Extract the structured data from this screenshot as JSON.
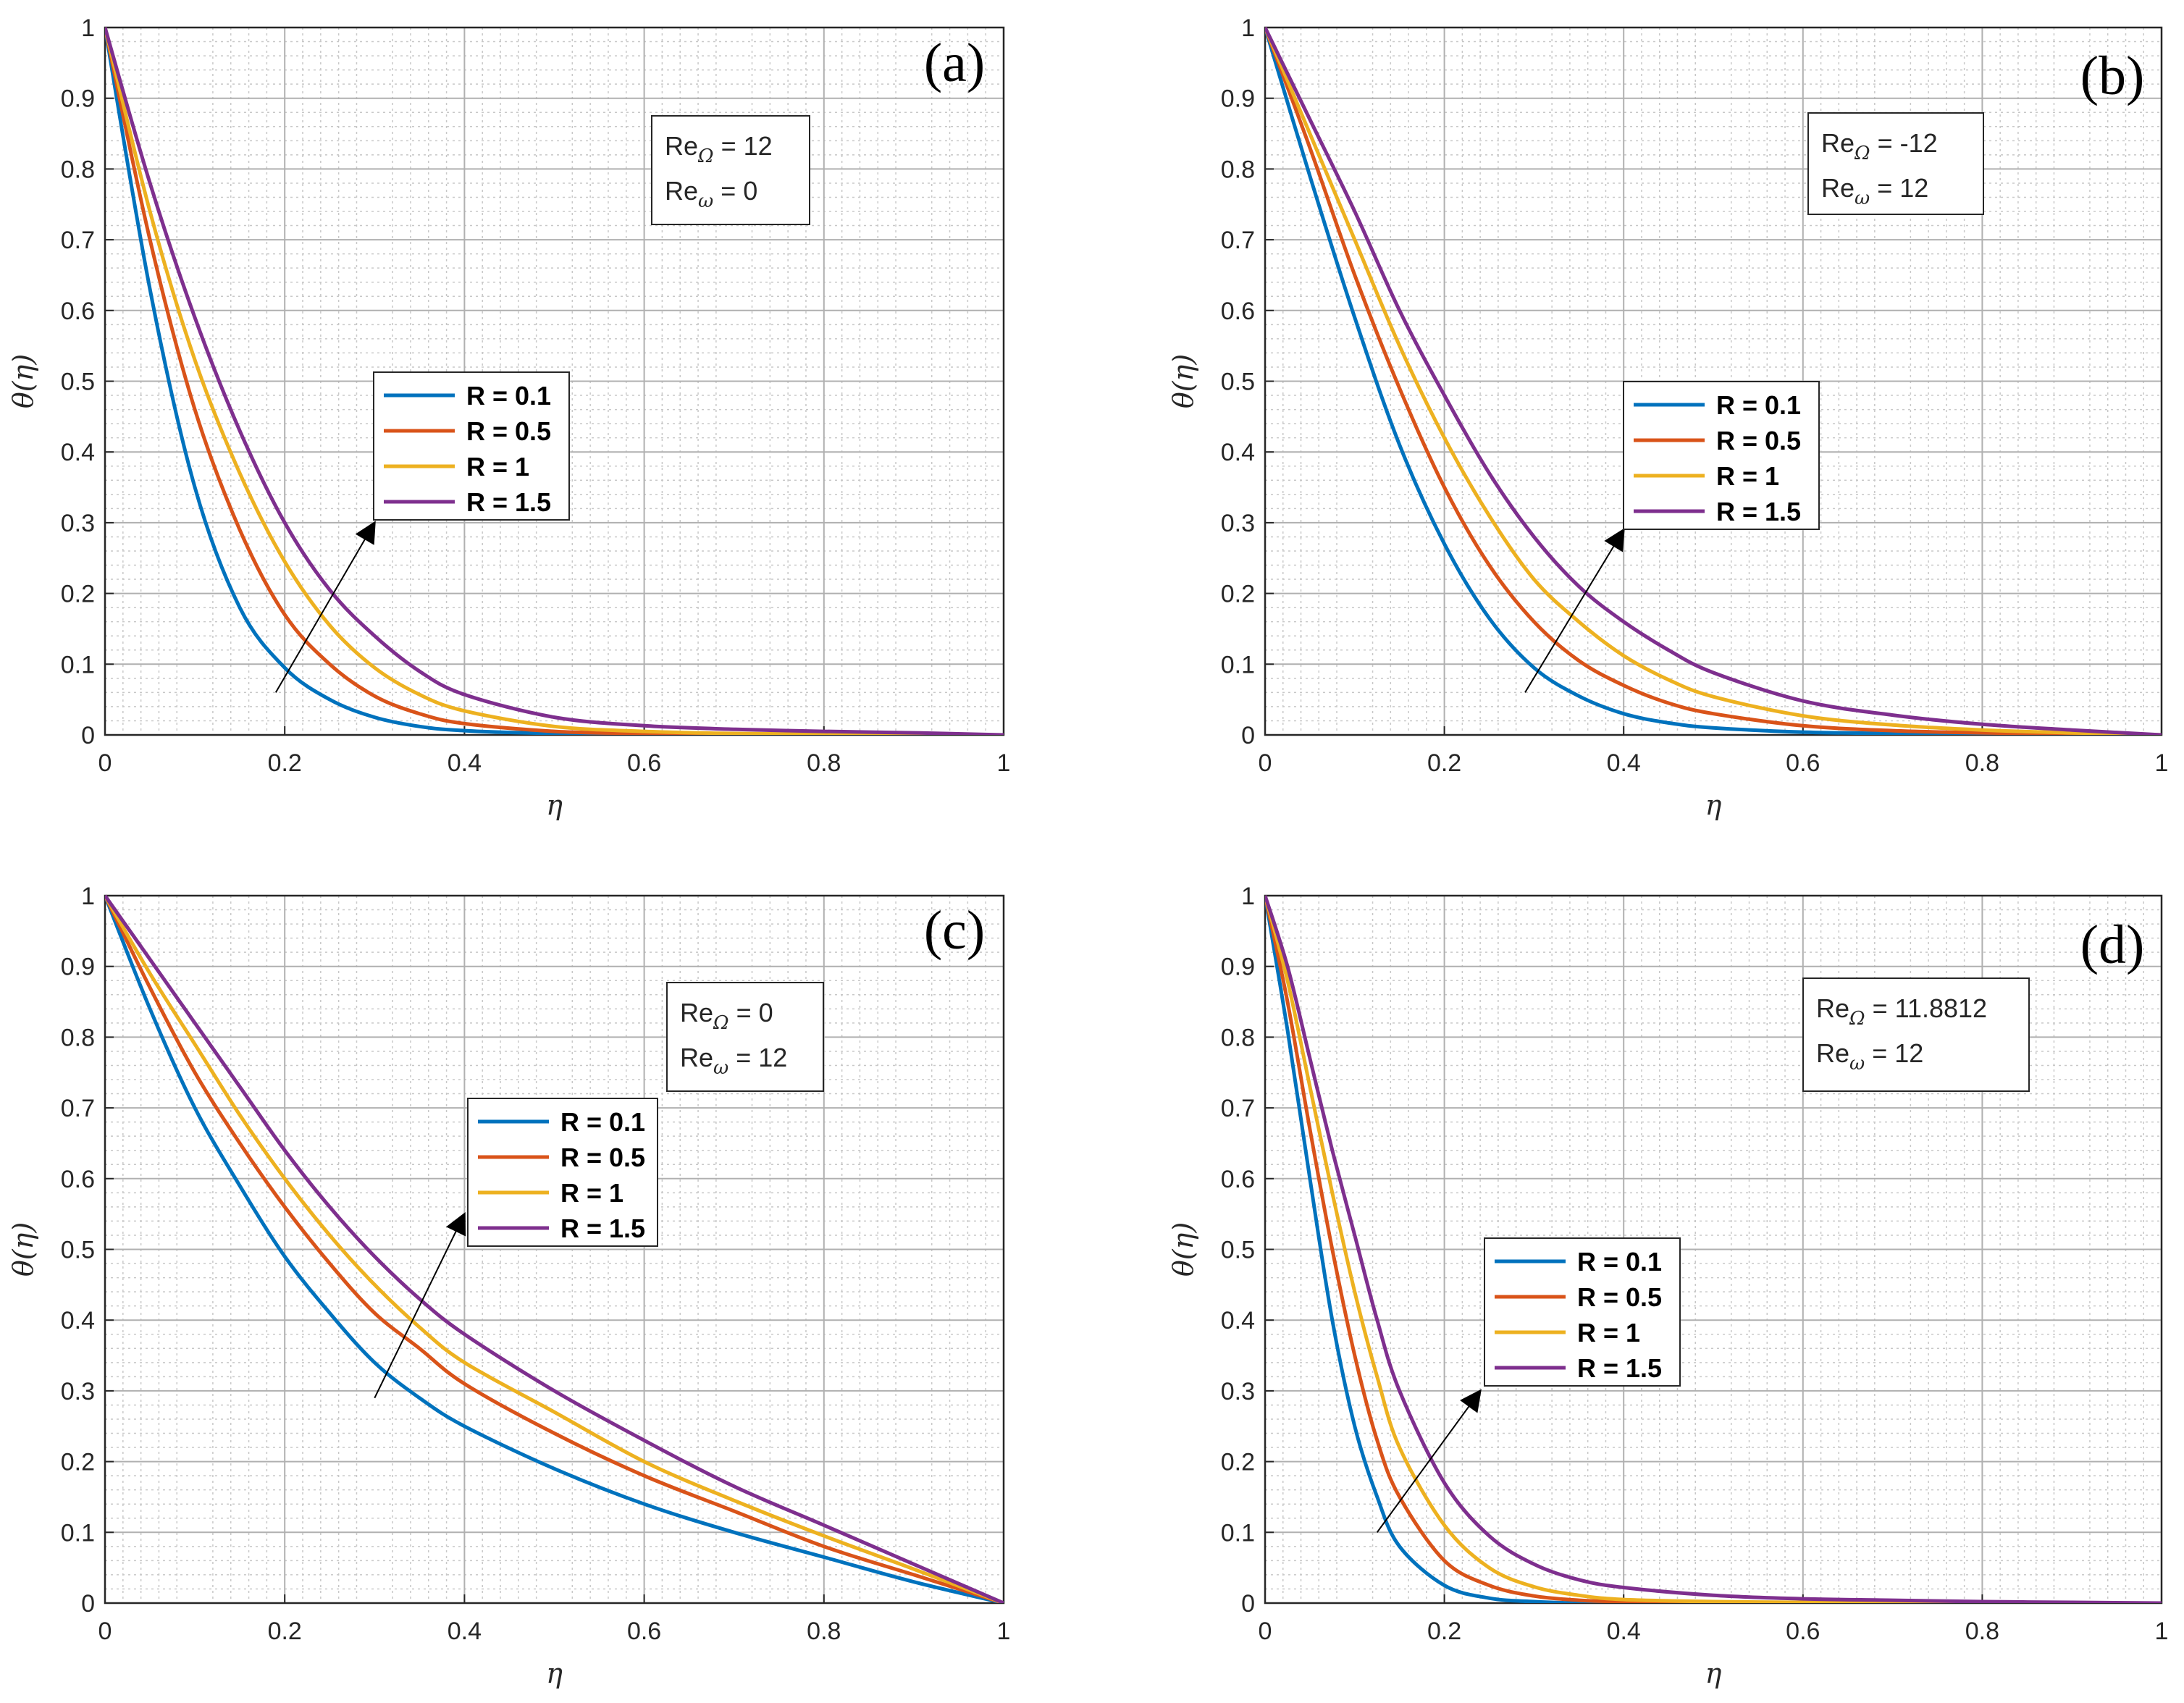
{
  "colors": {
    "R01": "#0072BD",
    "R05": "#D95319",
    "R1": "#EDB120",
    "R15": "#7E2F8E"
  },
  "chart_data": [
    {
      "panel": "a",
      "type": "line",
      "tag": "(a)",
      "xlabel": "η",
      "ylabel": "θ(η)",
      "xlim": [
        0,
        1
      ],
      "ylim": [
        0,
        1
      ],
      "xticks": [
        "0",
        "0.2",
        "0.4",
        "0.6",
        "0.8",
        "1"
      ],
      "yticks": [
        "0",
        "0.1",
        "0.2",
        "0.3",
        "0.4",
        "0.5",
        "0.6",
        "0.7",
        "0.8",
        "0.9",
        "1"
      ],
      "params": [
        {
          "base": "Re",
          "sub": "Ω",
          "value": " = 12"
        },
        {
          "base": "Re",
          "sub": "ω",
          "value": " = 0"
        }
      ],
      "arrow": {
        "from": [
          0.19,
          0.06
        ],
        "to": [
          0.3,
          0.3
        ]
      },
      "series": [
        {
          "name": "R = 0.1",
          "color_key": "R01",
          "x": [
            0,
            0.05,
            0.1,
            0.15,
            0.2,
            0.25,
            0.3,
            0.35,
            0.4,
            0.5,
            0.6,
            0.7,
            0.8,
            0.9,
            1
          ],
          "values": [
            1,
            0.63,
            0.35,
            0.18,
            0.095,
            0.05,
            0.025,
            0.012,
            0.006,
            0.002,
            0.001,
            0,
            0,
            0,
            0
          ]
        },
        {
          "name": "R = 0.5",
          "color_key": "R05",
          "x": [
            0,
            0.05,
            0.1,
            0.15,
            0.2,
            0.25,
            0.3,
            0.35,
            0.4,
            0.5,
            0.6,
            0.7,
            0.8,
            0.9,
            1
          ],
          "values": [
            1,
            0.7,
            0.46,
            0.29,
            0.17,
            0.1,
            0.055,
            0.03,
            0.016,
            0.005,
            0.002,
            0.001,
            0,
            0,
            0
          ]
        },
        {
          "name": "R = 1",
          "color_key": "R1",
          "x": [
            0,
            0.05,
            0.1,
            0.15,
            0.2,
            0.25,
            0.3,
            0.35,
            0.4,
            0.5,
            0.6,
            0.7,
            0.8,
            0.9,
            1
          ],
          "values": [
            1,
            0.74,
            0.53,
            0.37,
            0.245,
            0.155,
            0.095,
            0.057,
            0.034,
            0.012,
            0.005,
            0.002,
            0.001,
            0,
            0
          ]
        },
        {
          "name": "R = 1.5",
          "color_key": "R15",
          "x": [
            0,
            0.05,
            0.1,
            0.15,
            0.2,
            0.25,
            0.3,
            0.35,
            0.4,
            0.5,
            0.6,
            0.7,
            0.8,
            0.9,
            1
          ],
          "values": [
            1,
            0.78,
            0.59,
            0.43,
            0.3,
            0.205,
            0.14,
            0.09,
            0.057,
            0.025,
            0.013,
            0.008,
            0.005,
            0.003,
            0
          ]
        }
      ],
      "legend": [
        "R = 0.1",
        "R = 0.5",
        "R = 1",
        "R = 1.5"
      ]
    },
    {
      "panel": "b",
      "type": "line",
      "tag": "(b)",
      "xlabel": "η",
      "ylabel": "θ(η)",
      "xlim": [
        0,
        1
      ],
      "ylim": [
        0,
        1
      ],
      "xticks": [
        "0",
        "0.2",
        "0.4",
        "0.6",
        "0.8",
        "1"
      ],
      "yticks": [
        "0",
        "0.1",
        "0.2",
        "0.3",
        "0.4",
        "0.5",
        "0.6",
        "0.7",
        "0.8",
        "0.9",
        "1"
      ],
      "params": [
        {
          "base": "Re",
          "sub": "Ω",
          "value": " = -12"
        },
        {
          "base": "Re",
          "sub": "ω",
          "value": " = 12"
        }
      ],
      "arrow": {
        "from": [
          0.29,
          0.06
        ],
        "to": [
          0.4,
          0.29
        ]
      },
      "series": [
        {
          "name": "R = 0.1",
          "color_key": "R01",
          "x": [
            0,
            0.05,
            0.1,
            0.15,
            0.2,
            0.25,
            0.3,
            0.35,
            0.4,
            0.45,
            0.5,
            0.6,
            0.7,
            0.8,
            0.9,
            1
          ],
          "values": [
            1,
            0.79,
            0.59,
            0.41,
            0.27,
            0.165,
            0.095,
            0.055,
            0.03,
            0.017,
            0.01,
            0.004,
            0.002,
            0.001,
            0,
            0
          ]
        },
        {
          "name": "R = 0.5",
          "color_key": "R05",
          "x": [
            0,
            0.05,
            0.1,
            0.15,
            0.2,
            0.25,
            0.3,
            0.35,
            0.4,
            0.45,
            0.5,
            0.6,
            0.7,
            0.8,
            0.9,
            1
          ],
          "values": [
            1,
            0.83,
            0.65,
            0.49,
            0.35,
            0.24,
            0.16,
            0.105,
            0.07,
            0.045,
            0.03,
            0.013,
            0.006,
            0.003,
            0.001,
            0
          ]
        },
        {
          "name": "R = 1",
          "color_key": "R1",
          "x": [
            0,
            0.05,
            0.1,
            0.15,
            0.2,
            0.25,
            0.3,
            0.35,
            0.4,
            0.45,
            0.5,
            0.6,
            0.7,
            0.8,
            0.9,
            1
          ],
          "values": [
            1,
            0.85,
            0.7,
            0.55,
            0.42,
            0.31,
            0.22,
            0.16,
            0.112,
            0.078,
            0.054,
            0.027,
            0.014,
            0.007,
            0.003,
            0
          ]
        },
        {
          "name": "R = 1.5",
          "color_key": "R15",
          "x": [
            0,
            0.05,
            0.1,
            0.15,
            0.2,
            0.25,
            0.3,
            0.35,
            0.4,
            0.45,
            0.5,
            0.6,
            0.7,
            0.8,
            0.9,
            1
          ],
          "values": [
            1,
            0.87,
            0.74,
            0.6,
            0.48,
            0.37,
            0.28,
            0.21,
            0.16,
            0.12,
            0.088,
            0.048,
            0.028,
            0.015,
            0.007,
            0
          ]
        }
      ],
      "legend": [
        "R = 0.1",
        "R = 0.5",
        "R = 1",
        "R = 1.5"
      ]
    },
    {
      "panel": "c",
      "type": "line",
      "tag": "(c)",
      "xlabel": "η",
      "ylabel": "θ(η)",
      "xlim": [
        0,
        1
      ],
      "ylim": [
        0,
        1
      ],
      "xticks": [
        "0",
        "0.2",
        "0.4",
        "0.6",
        "0.8",
        "1"
      ],
      "yticks": [
        "0",
        "0.1",
        "0.2",
        "0.3",
        "0.4",
        "0.5",
        "0.6",
        "0.7",
        "0.8",
        "0.9",
        "1"
      ],
      "params": [
        {
          "base": "Re",
          "sub": "Ω",
          "value": " = 0"
        },
        {
          "base": "Re",
          "sub": "ω",
          "value": " = 12"
        }
      ],
      "arrow": {
        "from": [
          0.3,
          0.29
        ],
        "to": [
          0.4,
          0.55
        ]
      },
      "series": [
        {
          "name": "R = 0.1",
          "color_key": "R01",
          "x": [
            0,
            0.05,
            0.1,
            0.15,
            0.2,
            0.25,
            0.3,
            0.35,
            0.4,
            0.5,
            0.6,
            0.7,
            0.8,
            0.9,
            1
          ],
          "values": [
            1,
            0.84,
            0.7,
            0.59,
            0.49,
            0.41,
            0.34,
            0.29,
            0.25,
            0.19,
            0.14,
            0.1,
            0.065,
            0.03,
            0
          ]
        },
        {
          "name": "R = 0.5",
          "color_key": "R05",
          "x": [
            0,
            0.05,
            0.1,
            0.15,
            0.2,
            0.25,
            0.3,
            0.35,
            0.4,
            0.5,
            0.6,
            0.7,
            0.8,
            0.9,
            1
          ],
          "values": [
            1,
            0.87,
            0.75,
            0.65,
            0.56,
            0.48,
            0.41,
            0.36,
            0.31,
            0.24,
            0.18,
            0.13,
            0.08,
            0.04,
            0
          ]
        },
        {
          "name": "R = 1",
          "color_key": "R1",
          "x": [
            0,
            0.05,
            0.1,
            0.15,
            0.2,
            0.25,
            0.3,
            0.35,
            0.4,
            0.5,
            0.6,
            0.7,
            0.8,
            0.9,
            1
          ],
          "values": [
            1,
            0.89,
            0.79,
            0.69,
            0.6,
            0.52,
            0.45,
            0.39,
            0.34,
            0.27,
            0.2,
            0.145,
            0.095,
            0.048,
            0
          ]
        },
        {
          "name": "R = 1.5",
          "color_key": "R15",
          "x": [
            0,
            0.05,
            0.1,
            0.15,
            0.2,
            0.25,
            0.3,
            0.35,
            0.4,
            0.5,
            0.6,
            0.7,
            0.8,
            0.9,
            1
          ],
          "values": [
            1,
            0.91,
            0.82,
            0.73,
            0.64,
            0.56,
            0.49,
            0.43,
            0.38,
            0.3,
            0.23,
            0.165,
            0.11,
            0.055,
            0
          ]
        }
      ],
      "legend": [
        "R = 0.1",
        "R = 0.5",
        "R = 1",
        "R = 1.5"
      ]
    },
    {
      "panel": "d",
      "type": "line",
      "tag": "(d)",
      "xlabel": "η",
      "ylabel": "θ(η)",
      "xlim": [
        0,
        1
      ],
      "ylim": [
        0,
        1
      ],
      "xticks": [
        "0",
        "0.2",
        "0.4",
        "0.6",
        "0.8",
        "1"
      ],
      "yticks": [
        "0",
        "0.1",
        "0.2",
        "0.3",
        "0.4",
        "0.5",
        "0.6",
        "0.7",
        "0.8",
        "0.9",
        "1"
      ],
      "params": [
        {
          "base": "Re",
          "sub": "Ω",
          "value": " = 11.8812"
        },
        {
          "base": "Re",
          "sub": "ω",
          "value": " = 12"
        }
      ],
      "arrow": {
        "from": [
          0.125,
          0.1
        ],
        "to": [
          0.24,
          0.3
        ]
      },
      "series": [
        {
          "name": "R = 0.1",
          "color_key": "R01",
          "x": [
            0,
            0.025,
            0.05,
            0.075,
            0.1,
            0.125,
            0.15,
            0.2,
            0.25,
            0.3,
            0.35,
            0.4,
            0.5,
            0.6,
            0.7,
            0.8,
            0.9,
            1
          ],
          "values": [
            1,
            0.81,
            0.6,
            0.4,
            0.25,
            0.15,
            0.08,
            0.025,
            0.007,
            0.002,
            0,
            0,
            0,
            0,
            0,
            0,
            0,
            0
          ]
        },
        {
          "name": "R = 0.5",
          "color_key": "R05",
          "x": [
            0,
            0.025,
            0.05,
            0.075,
            0.1,
            0.125,
            0.15,
            0.2,
            0.25,
            0.3,
            0.35,
            0.4,
            0.5,
            0.6,
            0.7,
            0.8,
            0.9,
            1
          ],
          "values": [
            1,
            0.85,
            0.67,
            0.5,
            0.35,
            0.23,
            0.15,
            0.06,
            0.025,
            0.01,
            0.004,
            0.002,
            0,
            0,
            0,
            0,
            0,
            0
          ]
        },
        {
          "name": "R = 1",
          "color_key": "R1",
          "x": [
            0,
            0.025,
            0.05,
            0.075,
            0.1,
            0.125,
            0.15,
            0.2,
            0.25,
            0.3,
            0.35,
            0.4,
            0.5,
            0.6,
            0.7,
            0.8,
            0.9,
            1
          ],
          "values": [
            1,
            0.88,
            0.73,
            0.58,
            0.44,
            0.32,
            0.22,
            0.11,
            0.05,
            0.023,
            0.011,
            0.005,
            0.002,
            0.001,
            0,
            0,
            0,
            0
          ]
        },
        {
          "name": "R = 1.5",
          "color_key": "R15",
          "x": [
            0,
            0.025,
            0.05,
            0.075,
            0.1,
            0.125,
            0.15,
            0.2,
            0.25,
            0.3,
            0.35,
            0.4,
            0.5,
            0.6,
            0.7,
            0.8,
            0.9,
            1
          ],
          "values": [
            1,
            0.9,
            0.77,
            0.64,
            0.52,
            0.4,
            0.3,
            0.17,
            0.095,
            0.055,
            0.033,
            0.022,
            0.011,
            0.006,
            0.004,
            0.002,
            0.001,
            0
          ]
        }
      ],
      "legend": [
        "R = 0.1",
        "R = 0.5",
        "R = 1",
        "R = 1.5"
      ]
    }
  ]
}
